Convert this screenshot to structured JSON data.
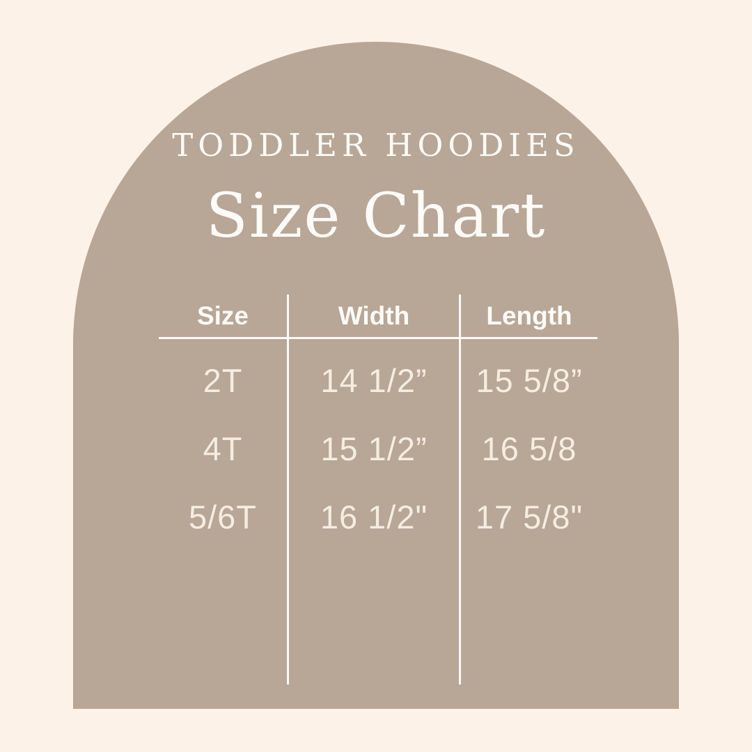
{
  "colors": {
    "background": "#FDF2E8",
    "arch": "#B8A696",
    "heading_text": "#FDFBF7",
    "value_text": "#F6EDE2",
    "line": "#FCFAF6"
  },
  "header": {
    "eyebrow": "TODDLER HOODIES",
    "title": "Size Chart"
  },
  "chart_data": {
    "type": "table",
    "title": "Size Chart",
    "subtitle": "TODDLER HOODIES",
    "columns": [
      "Size",
      "Width",
      "Length"
    ],
    "rows": [
      [
        "2T",
        "14 1/2”",
        "15 5/8”"
      ],
      [
        "4T",
        "15 1/2”",
        "16 5/8"
      ],
      [
        "5/6T",
        "16 1/2\"",
        "17 5/8\""
      ]
    ]
  }
}
